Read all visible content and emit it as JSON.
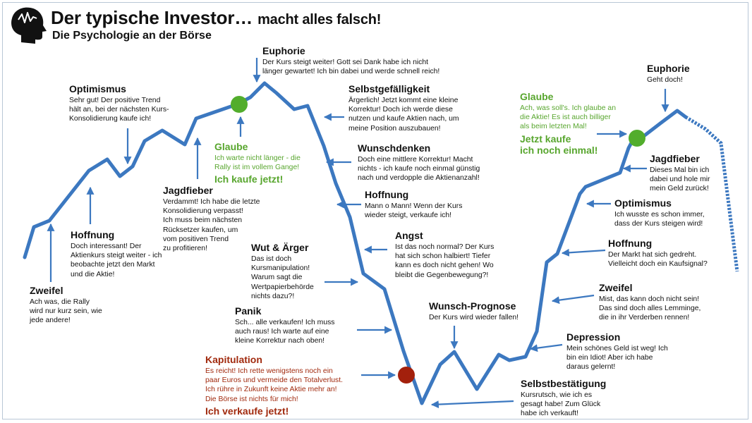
{
  "header": {
    "title_main": "Der typische Investor…",
    "title_tail": "macht alles falsch!",
    "subtitle": "Die Psychologie an der Börse"
  },
  "labels": {
    "zweifel1": {
      "title": "Zweifel",
      "text": "Ach was, die Rally\nwird nur kurz sein, wie\njede andere!"
    },
    "hoffnung1": {
      "title": "Hoffnung",
      "text": "Doch interessant! Der\nAktienkurs steigt weiter - ich\nbeobachte jetzt den Markt\nund die Aktie!"
    },
    "optimismus1": {
      "title": "Optimismus",
      "text": "Sehr gut! Der positive Trend\nhält an, bei der nächsten Kurs-\nKonsolidierung kaufe ich!"
    },
    "jagdfieber1": {
      "title": "Jagdfieber",
      "text": "Verdammt! Ich habe die letzte\nKonsolidierung verpasst!\nIch muss beim nächsten\nRücksetzer kaufen, um\nvom positiven Trend\nzu profitieren!"
    },
    "glaube1": {
      "title": "Glaube",
      "text": "Ich warte nicht länger - die\nRally ist im vollem Gange!",
      "cta": "Ich kaufe jetzt!"
    },
    "euphorie1": {
      "title": "Euphorie",
      "text": "Der Kurs steigt weiter! Gott sei Dank habe ich nicht\nlänger gewartet! Ich bin dabei und werde schnell reich!"
    },
    "selbstgef": {
      "title": "Selbstgefälligkeit",
      "text": "Ärgerlich! Jetzt kommt eine kleine\nKorrektur! Doch ich werde diese\nnutzen und kaufe Aktien nach, um\nmeine Position auszubauen!"
    },
    "wunschdenken": {
      "title": "Wunschdenken",
      "text": "Doch eine mittlere Korrektur! Macht\nnichts - ich kaufe noch einmal günstig\nnach und verdopple die Aktienanzahl!"
    },
    "hoffnung2": {
      "title": "Hoffnung",
      "text": "Mann o Mann! Wenn der Kurs\nwieder steigt, verkaufe ich!"
    },
    "angst": {
      "title": "Angst",
      "text": "Ist das noch normal? Der Kurs\nhat sich schon halbiert! Tiefer\nkann es doch nicht gehen! Wo\nbleibt die Gegenbewegung?!"
    },
    "wut": {
      "title": "Wut & Ärger",
      "text": "Das ist doch\nKursmanipulation!\nWarum sagt die\nWertpapierbehörde\nnichts dazu?!"
    },
    "panik": {
      "title": "Panik",
      "text": "Sch... alle verkaufen! Ich muss\nauch raus! Ich warte auf eine\nkleine Korrektur nach oben!"
    },
    "kapitulation": {
      "title": "Kapitulation",
      "text": "Es reicht! Ich rette wenigstens noch ein\npaar Euros und vermeide den Totalverlust.\nIch rühre in Zukunft keine Aktie mehr an!\nDie Börse ist nichts für mich!",
      "cta": "Ich verkaufe jetzt!"
    },
    "wunschprognose": {
      "title": "Wunsch-Prognose",
      "text": "Der Kurs wird wieder fallen!"
    },
    "selbstbest": {
      "title": "Selbstbestätigung",
      "text": "Kursrutsch, wie ich es\ngesagt habe! Zum Glück\nhabe ich verkauft!"
    },
    "depression": {
      "title": "Depression",
      "text": "Mein schönes Geld ist weg! Ich\nbin ein Idiot! Aber ich habe\ndaraus gelernt!"
    },
    "zweifel2": {
      "title": "Zweifel",
      "text": "Mist, das kann doch nicht sein!\nDas sind doch alles Lemminge,\ndie in ihr Verderben rennen!"
    },
    "hoffnung3": {
      "title": "Hoffnung",
      "text": "Der Markt hat sich gedreht.\nVielleicht doch ein Kaufsignal?"
    },
    "optimismus2": {
      "title": "Optimismus",
      "text": "Ich wusste es schon immer,\ndass der Kurs steigen wird!"
    },
    "jagdfieber2": {
      "title": "Jagdfieber",
      "text": "Dieses Mal bin ich\ndabei und hole mir\nmein Geld zurück!"
    },
    "glaube2": {
      "title": "Glaube",
      "text": "Ach, was soll's. Ich glaube an\ndie Aktie! Es ist auch billiger\nals beim letzten Mal!",
      "cta": "Jetzt kaufe\nich noch einmal!"
    },
    "euphorie2": {
      "title": "Euphorie",
      "text": "Geht doch!"
    }
  },
  "colors": {
    "line": "#3c78c0",
    "buy_marker": "#52ad2c",
    "sell_marker": "#a3200c",
    "green_text": "#58a62e",
    "red_text": "#a12a0e"
  },
  "icon": "head-with-brain-icon"
}
